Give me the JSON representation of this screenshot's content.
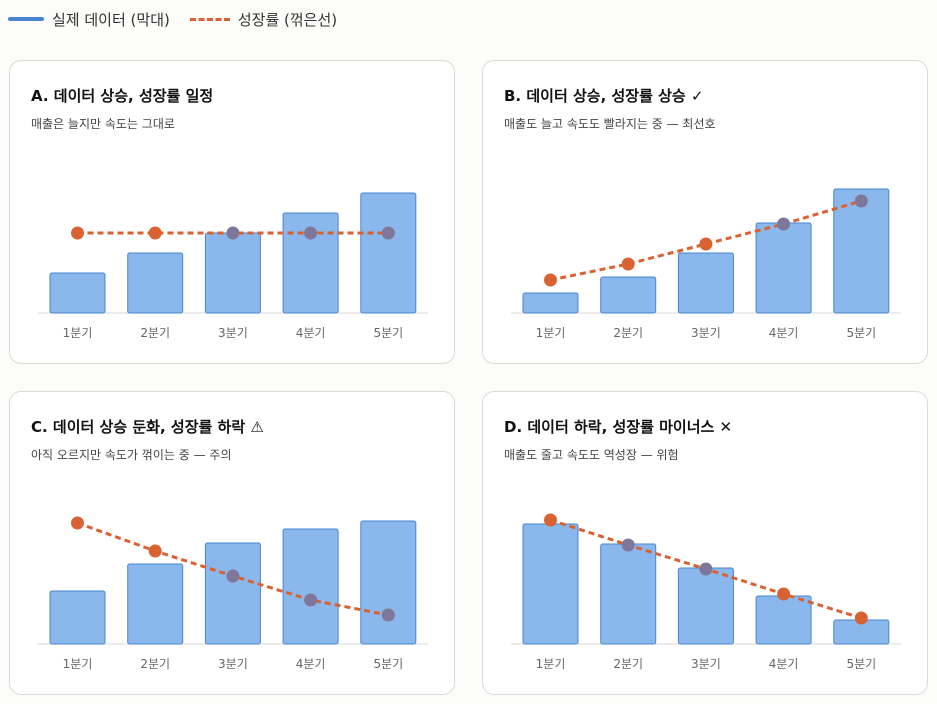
{
  "legend": {
    "bar_label": "실제 데이터 (막대)",
    "line_label": "성장률 (꺾은선)"
  },
  "colors": {
    "bar_fill": "#8ab8ec",
    "bar_stroke": "#4a86d0",
    "legend_bar": "#4a86d0",
    "line": "#d96233",
    "point": "#d96233",
    "point_over_bar": "#7e779a",
    "baseline": "#d8d8d8"
  },
  "panels": [
    {
      "title": "A. 데이터 상승, 성장률 일정",
      "subtitle": "매출은 늘지만 속도는 그대로"
    },
    {
      "title": "B. 데이터 상승, 성장률 상승 ✓",
      "subtitle": "매출도 늘고 속도도 빨라지는 중 — 최선호"
    },
    {
      "title": "C. 데이터 상승 둔화, 성장률 하락 ⚠",
      "subtitle": "아직 오르지만 속도가 꺾이는 중 — 주의"
    },
    {
      "title": "D. 데이터 하락, 성장률 마이너스 ✕",
      "subtitle": "매출도 줄고 속도도 역성장 — 위험"
    }
  ],
  "chart_data": [
    {
      "type": "bar",
      "categories": [
        "1분기",
        "2분기",
        "3분기",
        "4분기",
        "5분기"
      ],
      "series": [
        {
          "name": "실제 데이터 (막대)",
          "kind": "bar",
          "values": [
            40,
            60,
            80,
            100,
            120
          ]
        },
        {
          "name": "성장률 (꺾은선)",
          "kind": "line",
          "values": [
            80,
            80,
            80,
            80,
            80
          ]
        }
      ],
      "ylim": [
        0,
        140
      ]
    },
    {
      "type": "bar",
      "categories": [
        "1분기",
        "2분기",
        "3분기",
        "4분기",
        "5분기"
      ],
      "series": [
        {
          "name": "실제 데이터 (막대)",
          "kind": "bar",
          "values": [
            20,
            36,
            60,
            90,
            124
          ]
        },
        {
          "name": "성장률 (꺾은선)",
          "kind": "line",
          "values": [
            33,
            49,
            69,
            89,
            112
          ]
        }
      ],
      "ylim": [
        0,
        140
      ]
    },
    {
      "type": "bar",
      "categories": [
        "1분기",
        "2분기",
        "3분기",
        "4분기",
        "5분기"
      ],
      "series": [
        {
          "name": "실제 데이터 (막대)",
          "kind": "bar",
          "values": [
            53,
            80,
            101,
            115,
            123
          ]
        },
        {
          "name": "성장률 (꺾은선)",
          "kind": "line",
          "values": [
            121,
            93,
            68,
            44,
            29
          ]
        }
      ],
      "ylim": [
        0,
        140
      ]
    },
    {
      "type": "bar",
      "categories": [
        "1분기",
        "2분기",
        "3분기",
        "4분기",
        "5분기"
      ],
      "series": [
        {
          "name": "실제 데이터 (막대)",
          "kind": "bar",
          "values": [
            120,
            100,
            76,
            48,
            24
          ]
        },
        {
          "name": "성장률 (꺾은선)",
          "kind": "line",
          "values": [
            124,
            99,
            75,
            50,
            26
          ]
        }
      ],
      "ylim": [
        0,
        140
      ]
    }
  ]
}
